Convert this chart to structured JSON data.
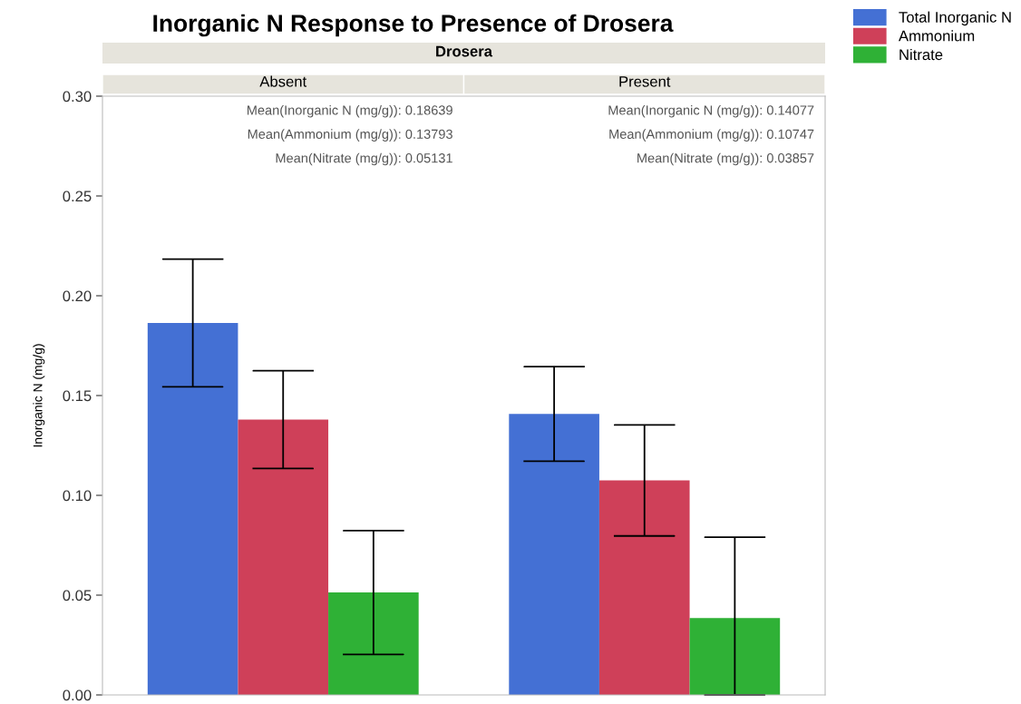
{
  "chart_data": {
    "type": "bar",
    "title": "Inorganic N Response to Presence of Drosera",
    "subtitle": "Drosera",
    "ylabel": "Inorganic N (mg/g)",
    "categories": [
      "Absent",
      "Present"
    ],
    "series": [
      {
        "name": "Total Inorganic N",
        "color": "#4470d4",
        "values": [
          0.18639,
          0.14077
        ],
        "errors": [
          0.032,
          0.0237
        ]
      },
      {
        "name": "Ammonium",
        "color": "#cf4059",
        "values": [
          0.13793,
          0.10747
        ],
        "errors": [
          0.0245,
          0.0278
        ]
      },
      {
        "name": "Nitrate",
        "color": "#2fb136",
        "values": [
          0.05131,
          0.03857
        ],
        "errors": [
          0.031,
          [
            0,
            0.079
          ]
        ]
      }
    ],
    "legend": "top right",
    "ylim": [
      0,
      0.3
    ],
    "yticks": [
      {
        "value": 0,
        "label": "0.00"
      },
      {
        "value": 0.05,
        "label": "0.05"
      },
      {
        "value": 0.1,
        "label": "0.10"
      },
      {
        "value": 0.15,
        "label": "0.15"
      },
      {
        "value": 0.2,
        "label": "0.20"
      },
      {
        "value": 0.25,
        "label": "0.25"
      },
      {
        "value": 0.3,
        "label": "0.30"
      }
    ],
    "annotations": [
      "Mean(Inorganic N (mg/g)): 0.18639",
      "Mean(Ammonium (mg/g)): 0.13793",
      "Mean(Nitrate (mg/g)): 0.05131",
      "Mean(Inorganic N (mg/g)): 0.14077",
      "Mean(Ammonium (mg/g)): 0.10747",
      "Mean(Nitrate (mg/g)): 0.03857"
    ]
  }
}
